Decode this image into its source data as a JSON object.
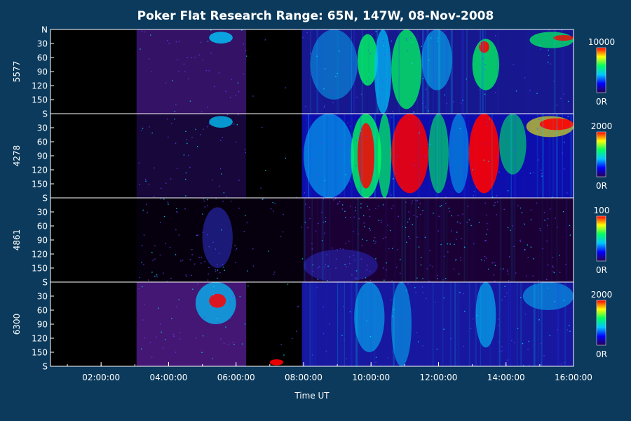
{
  "chart_data": {
    "type": "heatmap",
    "title": "Poker Flat Research Range: 65N, 147W, 08-Nov-2008",
    "xlabel": "Time UT",
    "x_tick_labels": [
      "02:00:00",
      "04:00:00",
      "06:00:00",
      "08:00:00",
      "10:00:00",
      "12:00:00",
      "14:00:00",
      "16:00:00"
    ],
    "x_tick_hours": [
      2,
      4,
      6,
      8,
      10,
      12,
      14,
      16
    ],
    "xlim_hours": [
      0.5,
      16.0
    ],
    "y_tick_labels": [
      "N",
      "30",
      "60",
      "90",
      "120",
      "150",
      "S"
    ],
    "y_tick_values": [
      0,
      30,
      60,
      90,
      120,
      150,
      180
    ],
    "ylim": [
      0,
      180
    ],
    "panels": [
      {
        "wavelength": "5577",
        "scale_max_label": "10000",
        "scale_min_label": "0R",
        "scale_max": 10000
      },
      {
        "wavelength": "4278",
        "scale_max_label": "2000",
        "scale_min_label": "0R",
        "scale_max": 2000
      },
      {
        "wavelength": "4861",
        "scale_max_label": "100",
        "scale_min_label": "0R",
        "scale_max": 100
      },
      {
        "wavelength": "6300",
        "scale_max_label": "2000",
        "scale_min_label": "0R",
        "scale_max": 2000
      }
    ],
    "observation_windows_hours": [
      [
        3.05,
        6.3
      ],
      [
        6.3,
        7.95
      ],
      [
        7.95,
        16.0
      ]
    ],
    "colormap": [
      "#2a0050",
      "#0000ff",
      "#00c8ff",
      "#00ff60",
      "#ffff00",
      "#ff0000"
    ]
  }
}
